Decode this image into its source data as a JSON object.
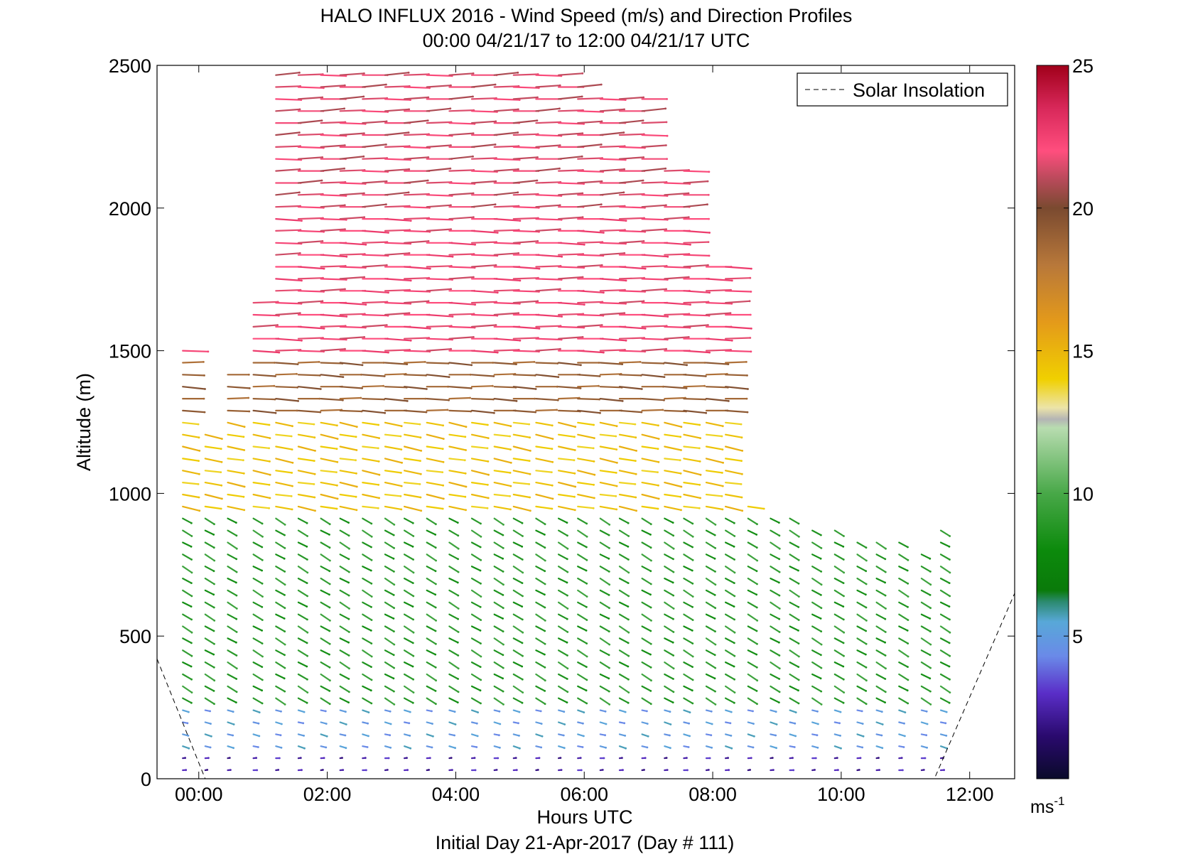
{
  "chart_data": {
    "type": "wind-barb-profile",
    "title": "HALO INFLUX 2016 - Wind Speed (m/s) and Direction Profiles",
    "subtitle": "00:00 04/21/17 to 12:00 04/21/17  UTC",
    "xlabel": "Hours UTC",
    "xlabel2": "Initial Day 21-Apr-2017 (Day # 111)",
    "ylabel": "Altitude (m)",
    "xlim": [
      -0.65,
      12.7
    ],
    "ylim": [
      0,
      2500
    ],
    "x_ticks": [
      {
        "value": 0,
        "label": "00:00"
      },
      {
        "value": 2,
        "label": "02:00"
      },
      {
        "value": 4,
        "label": "04:00"
      },
      {
        "value": 6,
        "label": "06:00"
      },
      {
        "value": 8,
        "label": "08:00"
      },
      {
        "value": 10,
        "label": "10:00"
      },
      {
        "value": 12,
        "label": "12:00"
      }
    ],
    "y_ticks": [
      {
        "value": 0,
        "label": "0"
      },
      {
        "value": 500,
        "label": "500"
      },
      {
        "value": 1000,
        "label": "1000"
      },
      {
        "value": 1500,
        "label": "1500"
      },
      {
        "value": 2000,
        "label": "2000"
      },
      {
        "value": 2500,
        "label": "2500"
      }
    ],
    "legend": {
      "entries": [
        "Solar Insolation"
      ],
      "position": "top-right"
    },
    "solar_insolation_line": {
      "style": "dashed",
      "points": [
        [
          -0.65,
          420
        ],
        [
          0.1,
          0
        ],
        [
          11.45,
          0
        ],
        [
          12.7,
          650
        ]
      ]
    },
    "colorbar": {
      "unit": "ms-1",
      "range": [
        0,
        25
      ],
      "ticks": [
        {
          "value": 5,
          "label": "5"
        },
        {
          "value": 10,
          "label": "10"
        },
        {
          "value": 15,
          "label": "15"
        },
        {
          "value": 20,
          "label": "20"
        },
        {
          "value": 25,
          "label": "25"
        }
      ],
      "stops": [
        {
          "v": 0,
          "c": "#0a0a2a"
        },
        {
          "v": 1.5,
          "c": "#2a0a6e"
        },
        {
          "v": 3,
          "c": "#5a2ec8"
        },
        {
          "v": 4.3,
          "c": "#6a8ae8"
        },
        {
          "v": 5.5,
          "c": "#58a8d8"
        },
        {
          "v": 6.2,
          "c": "#2c8a70"
        },
        {
          "v": 6.6,
          "c": "#0a7a0a"
        },
        {
          "v": 8,
          "c": "#0c8a0c"
        },
        {
          "v": 10,
          "c": "#48a848"
        },
        {
          "v": 12.3,
          "c": "#b8dcb0"
        },
        {
          "v": 12.6,
          "c": "#b4b4b4"
        },
        {
          "v": 13,
          "c": "#ece4a8"
        },
        {
          "v": 14,
          "c": "#f0d000"
        },
        {
          "v": 16,
          "c": "#e49a1a"
        },
        {
          "v": 18,
          "c": "#b8783a"
        },
        {
          "v": 20,
          "c": "#7a4a30"
        },
        {
          "v": 21,
          "c": "#b84a5a"
        },
        {
          "v": 22,
          "c": "#ff4e7e"
        },
        {
          "v": 23.5,
          "c": "#d8285a"
        },
        {
          "v": 25,
          "c": "#a0001a"
        }
      ]
    },
    "wind_field": {
      "time_step_hours": 0.333,
      "altitude_step_m": 42,
      "profiles": [
        {
          "t": -0.25,
          "bottom": 30,
          "top": 1540
        },
        {
          "t": 0.1,
          "bottom": 30,
          "top": 1230
        },
        {
          "t": 0.45,
          "bottom": 30,
          "top": 1420
        },
        {
          "t": 0.85,
          "bottom": 30,
          "top": 1700
        },
        {
          "t": 1.2,
          "bottom": 30,
          "top": 2490
        },
        {
          "t": 1.55,
          "bottom": 30,
          "top": 2490
        },
        {
          "t": 1.9,
          "bottom": 30,
          "top": 2490
        },
        {
          "t": 2.2,
          "bottom": 30,
          "top": 2490
        },
        {
          "t": 2.55,
          "bottom": 30,
          "top": 2490
        },
        {
          "t": 2.9,
          "bottom": 30,
          "top": 2490
        },
        {
          "t": 3.2,
          "bottom": 30,
          "top": 2490
        },
        {
          "t": 3.55,
          "bottom": 30,
          "top": 2490
        },
        {
          "t": 3.9,
          "bottom": 30,
          "top": 2490
        },
        {
          "t": 4.25,
          "bottom": 30,
          "top": 2490
        },
        {
          "t": 4.6,
          "bottom": 30,
          "top": 2490
        },
        {
          "t": 4.9,
          "bottom": 30,
          "top": 2490
        },
        {
          "t": 5.25,
          "bottom": 30,
          "top": 2490
        },
        {
          "t": 5.6,
          "bottom": 30,
          "top": 2490
        },
        {
          "t": 5.9,
          "bottom": 30,
          "top": 2440
        },
        {
          "t": 6.25,
          "bottom": 30,
          "top": 2400
        },
        {
          "t": 6.55,
          "bottom": 30,
          "top": 2410
        },
        {
          "t": 6.9,
          "bottom": 30,
          "top": 2390
        },
        {
          "t": 7.25,
          "bottom": 30,
          "top": 2170
        },
        {
          "t": 7.55,
          "bottom": 30,
          "top": 2170
        },
        {
          "t": 7.9,
          "bottom": 30,
          "top": 1830
        },
        {
          "t": 8.2,
          "bottom": 30,
          "top": 1830
        },
        {
          "t": 8.55,
          "bottom": 30,
          "top": 960
        },
        {
          "t": 8.9,
          "bottom": 30,
          "top": 940
        },
        {
          "t": 9.2,
          "bottom": 30,
          "top": 920
        },
        {
          "t": 9.55,
          "bottom": 30,
          "top": 900
        },
        {
          "t": 9.9,
          "bottom": 30,
          "top": 880
        },
        {
          "t": 10.25,
          "bottom": 30,
          "top": 860
        },
        {
          "t": 10.55,
          "bottom": 30,
          "top": 840
        },
        {
          "t": 10.9,
          "bottom": 30,
          "top": 830
        },
        {
          "t": 11.25,
          "bottom": 30,
          "top": 820
        },
        {
          "t": 11.55,
          "bottom": 30,
          "top": 880
        }
      ],
      "layers": [
        {
          "from": 0,
          "to": 90,
          "speed": 2.5,
          "direction_deg": 265
        },
        {
          "from": 90,
          "to": 250,
          "speed": 5.0,
          "direction_deg": 285
        },
        {
          "from": 250,
          "to": 950,
          "speed": 9.0,
          "direction_deg": 300
        },
        {
          "from": 950,
          "to": 1250,
          "speed": 14.5,
          "direction_deg": 280
        },
        {
          "from": 1250,
          "to": 1500,
          "speed": 19.0,
          "direction_deg": 272
        },
        {
          "from": 1500,
          "to": 2000,
          "speed": 22.0,
          "direction_deg": 270
        },
        {
          "from": 2000,
          "to": 2500,
          "speed": 21.5,
          "direction_deg": 268
        }
      ]
    }
  }
}
